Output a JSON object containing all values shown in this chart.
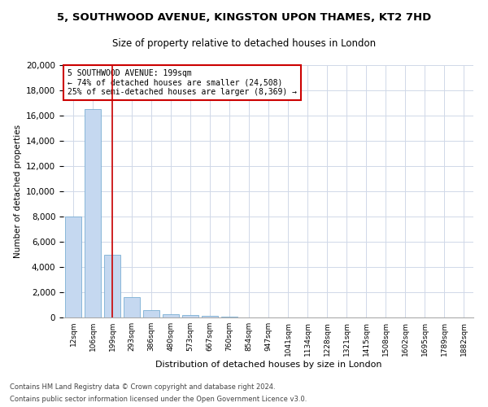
{
  "title": "5, SOUTHWOOD AVENUE, KINGSTON UPON THAMES, KT2 7HD",
  "subtitle": "Size of property relative to detached houses in London",
  "xlabel": "Distribution of detached houses by size in London",
  "ylabel": "Number of detached properties",
  "categories": [
    "12sqm",
    "106sqm",
    "199sqm",
    "293sqm",
    "386sqm",
    "480sqm",
    "573sqm",
    "667sqm",
    "760sqm",
    "854sqm",
    "947sqm",
    "1041sqm",
    "1134sqm",
    "1228sqm",
    "1321sqm",
    "1415sqm",
    "1508sqm",
    "1602sqm",
    "1695sqm",
    "1789sqm",
    "1882sqm"
  ],
  "values": [
    8000,
    16500,
    5000,
    1600,
    600,
    280,
    180,
    100,
    50,
    0,
    0,
    0,
    0,
    0,
    0,
    0,
    0,
    0,
    0,
    0,
    0
  ],
  "bar_color": "#c5d8f0",
  "bar_edge_color": "#7bafd4",
  "vline_x": 2,
  "vline_color": "#cc0000",
  "annotation_text": "5 SOUTHWOOD AVENUE: 199sqm\n← 74% of detached houses are smaller (24,508)\n25% of semi-detached houses are larger (8,369) →",
  "annotation_box_color": "#cc0000",
  "ylim": [
    0,
    20000
  ],
  "yticks": [
    0,
    2000,
    4000,
    6000,
    8000,
    10000,
    12000,
    14000,
    16000,
    18000,
    20000
  ],
  "footer_line1": "Contains HM Land Registry data © Crown copyright and database right 2024.",
  "footer_line2": "Contains public sector information licensed under the Open Government Licence v3.0.",
  "bg_color": "#ffffff",
  "grid_color": "#d0d8e8"
}
